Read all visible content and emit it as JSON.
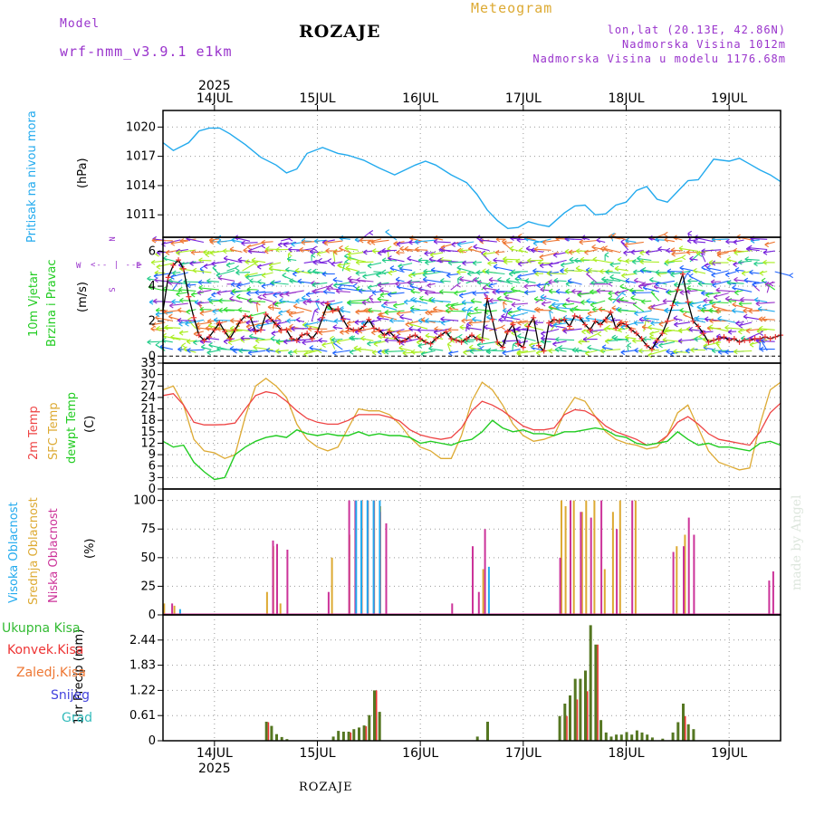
{
  "header": {
    "model_label": "Model",
    "model_name": "wrf-nmm_v3.9.1 e1km",
    "title": "ROZAJE",
    "meteogram": "Meteogram",
    "lonlat": "lon,lat (20.13E, 42.86N)",
    "altitude": "Nadmorska Visina 1012m",
    "model_altitude": "Nadmorska Visina u modelu 1176.68m",
    "footer": "ROZAJE",
    "watermark": "made by Angel",
    "year": "2025"
  },
  "colors": {
    "pressure": "#22aaee",
    "wind": "#22cc22",
    "t2m": "#ee4444",
    "sfc": "#ddaa33",
    "dew": "#22cc22",
    "high": "#22aaee",
    "mid": "#ddaa33",
    "low": "#cc3399",
    "total_precip": "#33bb33",
    "conv_precip": "#ee3333",
    "frz_precip": "#ee7733",
    "snow": "#4444dd",
    "hail": "#33bbbb",
    "compass": "#9933cc"
  },
  "dates": [
    "14JUL",
    "15JUL",
    "16JUL",
    "17JUL",
    "18JUL",
    "19JUL"
  ],
  "panels": {
    "pressure": {
      "ylabel": "Pritisak na nivou mora",
      "unit": "(hPa)",
      "ticks": [
        1011,
        1014,
        1017,
        1020
      ],
      "ylim": [
        1008.7,
        1021.7
      ]
    },
    "wind": {
      "ylabel1": "10m Vjetar",
      "ylabel2": "Brzina i Pravac",
      "unit": "(m/s)",
      "ticks": [
        0,
        2,
        4,
        6
      ],
      "ylim": [
        -0.4,
        6.8
      ],
      "compass": {
        "n": "N",
        "s": "S",
        "w": "W",
        "e": "E"
      }
    },
    "temperature": {
      "ylabel1": "2m Temp",
      "ylabel2": "SFC Temp",
      "ylabel3": "dewpt Temp",
      "unit": "(C)",
      "ticks": [
        0,
        3,
        6,
        9,
        12,
        15,
        18,
        21,
        24,
        27,
        30,
        33
      ],
      "ylim": [
        0,
        33
      ]
    },
    "clouds": {
      "ylabel1": "Visoka Oblacnost",
      "ylabel2": "Srednja Oblacnost",
      "ylabel3": "Niska Oblacnost",
      "unit": "(%)",
      "ticks": [
        0,
        25,
        50,
        75,
        100
      ],
      "ylim": [
        0,
        110
      ]
    },
    "precip": {
      "legend": [
        "Ukupna Kisa",
        "Konvek.Kisa",
        "Zaledj.Kisa",
        "Snijeg",
        "Grad"
      ],
      "ylabel": "1hr Precip (mm)",
      "ticks": [
        0,
        0.61,
        1.22,
        1.83,
        2.44
      ],
      "ylim": [
        0,
        3.05
      ]
    }
  },
  "chart_data": {
    "type": "line",
    "title": "ROZAJE",
    "x_dates": [
      "14JUL",
      "15JUL",
      "16JUL",
      "17JUL",
      "18JUL",
      "19JUL"
    ],
    "x_range_days": [
      13.5,
      19.5
    ],
    "pressure_hPa": {
      "x": [
        13.5,
        13.6,
        13.75,
        13.85,
        13.95,
        14.05,
        14.15,
        14.3,
        14.45,
        14.6,
        14.7,
        14.8,
        14.9,
        15.05,
        15.2,
        15.3,
        15.45,
        15.6,
        15.75,
        15.85,
        15.95,
        16.05,
        16.15,
        16.3,
        16.45,
        16.55,
        16.65,
        16.75,
        16.85,
        16.95,
        17.05,
        17.15,
        17.25,
        17.4,
        17.5,
        17.6,
        17.7,
        17.8,
        17.9,
        18.0,
        18.1,
        18.2,
        18.3,
        18.4,
        18.5,
        18.6,
        18.7,
        18.85,
        19.0,
        19.1,
        19.2,
        19.3,
        19.4,
        19.5
      ],
      "values": [
        1018.4,
        1017.6,
        1018.4,
        1019.6,
        1019.9,
        1019.9,
        1019.3,
        1018.2,
        1016.9,
        1016.1,
        1015.3,
        1015.7,
        1017.3,
        1017.9,
        1017.3,
        1017.1,
        1016.6,
        1015.8,
        1015.1,
        1015.6,
        1016.1,
        1016.5,
        1016.1,
        1015.1,
        1014.3,
        1013.1,
        1011.5,
        1010.4,
        1009.6,
        1009.7,
        1010.3,
        1010.0,
        1009.8,
        1011.2,
        1011.9,
        1012.0,
        1011.0,
        1011.1,
        1012.0,
        1012.3,
        1013.5,
        1013.9,
        1012.6,
        1012.3,
        1013.4,
        1014.5,
        1014.6,
        1016.7,
        1016.5,
        1016.8,
        1016.2,
        1015.6,
        1015.1,
        1014.4
      ]
    },
    "wind_speed_ms": {
      "x": [
        13.5,
        13.55,
        13.6,
        13.65,
        13.7,
        13.75,
        13.8,
        13.85,
        13.9,
        13.95,
        14.0,
        14.05,
        14.1,
        14.15,
        14.2,
        14.25,
        14.3,
        14.35,
        14.4,
        14.45,
        14.5,
        14.55,
        14.6,
        14.65,
        14.7,
        14.75,
        14.8,
        14.85,
        14.9,
        14.95,
        15.0,
        15.05,
        15.1,
        15.15,
        15.2,
        15.25,
        15.3,
        15.35,
        15.4,
        15.45,
        15.5,
        15.55,
        15.6,
        15.65,
        15.7,
        15.75,
        15.8,
        15.85,
        15.9,
        15.95,
        16.0,
        16.05,
        16.1,
        16.15,
        16.2,
        16.25,
        16.3,
        16.35,
        16.4,
        16.45,
        16.5,
        16.55,
        16.6,
        16.65,
        16.7,
        16.75,
        16.8,
        16.85,
        16.9,
        16.95,
        17.0,
        17.05,
        17.1,
        17.15,
        17.2,
        17.25,
        17.3,
        17.35,
        17.4,
        17.45,
        17.5,
        17.55,
        17.6,
        17.65,
        17.7,
        17.75,
        17.8,
        17.85,
        17.9,
        17.95,
        18.0,
        18.05,
        18.1,
        18.15,
        18.2,
        18.25,
        18.3,
        18.35,
        18.4,
        18.45,
        18.5,
        18.55,
        18.6,
        18.65,
        18.7,
        18.75,
        18.8,
        18.85,
        18.9,
        18.95,
        19.0,
        19.05,
        19.1,
        19.15,
        19.2,
        19.25,
        19.3,
        19.35,
        19.4,
        19.45,
        19.5
      ],
      "values": [
        2.6,
        4.5,
        5.2,
        5.5,
        5.0,
        3.4,
        2.2,
        1.2,
        0.9,
        1.1,
        1.5,
        1.9,
        1.4,
        1.0,
        1.5,
        2.0,
        2.3,
        2.2,
        1.4,
        1.5,
        2.4,
        2.1,
        1.8,
        1.5,
        1.5,
        1.0,
        0.9,
        1.2,
        1.3,
        1.0,
        1.4,
        2.2,
        3.0,
        2.6,
        2.7,
        2.1,
        1.6,
        1.5,
        1.5,
        1.7,
        2.1,
        1.6,
        1.5,
        1.2,
        1.4,
        1.1,
        0.8,
        0.9,
        1.1,
        1.2,
        1.0,
        0.8,
        0.7,
        1.0,
        1.2,
        1.4,
        1.0,
        0.9,
        0.8,
        1.0,
        1.2,
        1.0,
        0.9,
        3.3,
        2.1,
        0.8,
        0.5,
        1.4,
        1.8,
        0.7,
        0.5,
        1.7,
        2.2,
        0.6,
        0.3,
        1.9,
        2.1,
        2.0,
        2.1,
        1.7,
        2.3,
        2.2,
        1.8,
        1.5,
        2.0,
        1.8,
        2.1,
        2.5,
        1.6,
        1.9,
        1.8,
        1.5,
        1.3,
        1.0,
        0.6,
        0.4,
        0.9,
        1.3,
        2.0,
        2.9,
        3.8,
        4.7,
        3.1,
        2.0,
        1.7,
        1.3,
        0.8,
        0.9,
        1.0,
        1.1,
        0.9,
        1.0,
        0.8,
        0.9,
        0.9,
        1.0,
        1.0,
        1.1,
        1.0,
        1.1,
        1.2
      ]
    },
    "temp_2m_C": {
      "x": [
        13.5,
        13.6,
        13.7,
        13.8,
        13.9,
        14.0,
        14.1,
        14.2,
        14.3,
        14.4,
        14.5,
        14.6,
        14.7,
        14.8,
        14.9,
        15.0,
        15.1,
        15.2,
        15.3,
        15.4,
        15.5,
        15.6,
        15.7,
        15.8,
        15.9,
        16.0,
        16.1,
        16.2,
        16.3,
        16.4,
        16.5,
        16.6,
        16.7,
        16.8,
        16.9,
        17.0,
        17.1,
        17.2,
        17.3,
        17.4,
        17.5,
        17.6,
        17.7,
        17.8,
        17.9,
        18.0,
        18.1,
        18.2,
        18.3,
        18.4,
        18.5,
        18.6,
        18.7,
        18.8,
        18.9,
        19.0,
        19.1,
        19.2,
        19.3,
        19.4,
        19.5
      ],
      "values": [
        24.5,
        25.0,
        22.0,
        17.5,
        16.8,
        16.8,
        16.9,
        17.3,
        21.0,
        24.5,
        25.5,
        25.0,
        23.0,
        20.5,
        18.5,
        17.5,
        17.0,
        17.0,
        18.0,
        19.5,
        19.5,
        19.5,
        18.8,
        17.8,
        15.5,
        14.2,
        13.5,
        13.0,
        13.5,
        16.0,
        20.5,
        23.0,
        22.0,
        20.5,
        18.5,
        16.5,
        15.5,
        15.5,
        16.0,
        19.5,
        20.8,
        20.5,
        19.0,
        16.5,
        15.0,
        14.0,
        13.0,
        11.5,
        12.0,
        14.0,
        17.5,
        19.0,
        17.0,
        14.5,
        13.0,
        12.5,
        12.0,
        11.5,
        15.0,
        20.0,
        22.5
      ]
    },
    "temp_sfc_C": {
      "x": [
        13.5,
        13.6,
        13.7,
        13.8,
        13.9,
        14.0,
        14.1,
        14.2,
        14.3,
        14.4,
        14.5,
        14.6,
        14.7,
        14.8,
        14.9,
        15.0,
        15.1,
        15.2,
        15.3,
        15.4,
        15.5,
        15.6,
        15.7,
        15.8,
        15.9,
        16.0,
        16.1,
        16.2,
        16.3,
        16.4,
        16.5,
        16.6,
        16.7,
        16.8,
        16.9,
        17.0,
        17.1,
        17.2,
        17.3,
        17.4,
        17.5,
        17.6,
        17.7,
        17.8,
        17.9,
        18.0,
        18.1,
        18.2,
        18.3,
        18.4,
        18.5,
        18.6,
        18.7,
        18.8,
        18.9,
        19.0,
        19.1,
        19.2,
        19.3,
        19.4,
        19.5
      ],
      "values": [
        26.0,
        27.0,
        22.0,
        13.0,
        10.0,
        9.5,
        8.0,
        9.0,
        19.0,
        27.0,
        29.0,
        27.0,
        24.0,
        17.0,
        13.0,
        11.0,
        10.0,
        11.0,
        16.0,
        21.0,
        20.5,
        20.5,
        19.5,
        17.0,
        13.5,
        11.0,
        10.0,
        8.0,
        8.0,
        14.0,
        23.0,
        28.0,
        26.0,
        22.0,
        17.0,
        14.0,
        12.5,
        13.0,
        14.0,
        20.0,
        24.0,
        23.0,
        19.0,
        15.0,
        13.0,
        12.0,
        11.5,
        10.5,
        11.0,
        14.0,
        20.0,
        22.0,
        16.0,
        10.0,
        7.0,
        6.0,
        5.0,
        5.5,
        17.0,
        26.0,
        28.0
      ]
    },
    "dewpoint_C": {
      "x": [
        13.5,
        13.6,
        13.7,
        13.8,
        13.9,
        14.0,
        14.1,
        14.2,
        14.3,
        14.4,
        14.5,
        14.6,
        14.7,
        14.8,
        14.9,
        15.0,
        15.1,
        15.2,
        15.3,
        15.4,
        15.5,
        15.6,
        15.7,
        15.8,
        15.9,
        16.0,
        16.1,
        16.2,
        16.3,
        16.4,
        16.5,
        16.6,
        16.7,
        16.8,
        16.9,
        17.0,
        17.1,
        17.2,
        17.3,
        17.4,
        17.5,
        17.6,
        17.7,
        17.8,
        17.9,
        18.0,
        18.1,
        18.2,
        18.3,
        18.4,
        18.5,
        18.6,
        18.7,
        18.8,
        18.9,
        19.0,
        19.1,
        19.2,
        19.3,
        19.4,
        19.5
      ],
      "values": [
        12.5,
        11.0,
        11.5,
        7.0,
        4.5,
        2.5,
        3.0,
        9.0,
        11.0,
        12.5,
        13.5,
        14.0,
        13.5,
        15.5,
        14.5,
        14.0,
        14.5,
        14.0,
        14.0,
        15.0,
        14.0,
        14.5,
        14.0,
        14.0,
        13.5,
        12.0,
        12.5,
        12.0,
        11.5,
        12.5,
        13.0,
        15.0,
        18.0,
        16.0,
        15.0,
        15.5,
        14.5,
        14.5,
        14.0,
        15.0,
        15.0,
        15.5,
        16.0,
        15.5,
        14.0,
        13.5,
        12.0,
        11.5,
        12.0,
        12.5,
        15.0,
        13.0,
        11.5,
        12.0,
        11.0,
        11.0,
        10.5,
        10.0,
        12.0,
        12.5,
        11.5
      ]
    },
    "cloud_low_pct": {
      "x": [
        13.58,
        14.56,
        14.6,
        14.7,
        15.1,
        15.3,
        15.36,
        15.42,
        15.48,
        15.54,
        15.6,
        15.66,
        16.3,
        16.5,
        16.56,
        16.62,
        17.35,
        17.45,
        17.55,
        17.65,
        17.75,
        17.9,
        18.05,
        18.45,
        18.55,
        18.6,
        18.65,
        19.38,
        19.42
      ],
      "values": [
        10,
        65,
        62,
        57,
        20,
        100,
        100,
        100,
        100,
        100,
        90,
        80,
        10,
        60,
        20,
        75,
        50,
        100,
        90,
        85,
        100,
        75,
        100,
        55,
        60,
        85,
        70,
        30,
        38
      ]
    },
    "cloud_mid_pct": {
      "x": [
        13.52,
        13.62,
        14.52,
        14.58,
        14.65,
        15.15,
        15.32,
        15.38,
        15.44,
        15.5,
        15.56,
        15.62,
        16.62,
        17.38,
        17.42,
        17.5,
        17.58,
        17.62,
        17.7,
        17.8,
        17.88,
        17.95,
        18.1,
        18.5,
        18.58
      ],
      "values": [
        10,
        8,
        20,
        60,
        10,
        50,
        70,
        100,
        100,
        100,
        100,
        95,
        40,
        100,
        95,
        100,
        90,
        100,
        100,
        40,
        90,
        100,
        100,
        60,
        70
      ]
    },
    "cloud_high_pct": {
      "x": [
        13.64,
        15.35,
        15.4,
        15.46,
        15.52,
        15.58,
        16.64
      ],
      "values": [
        5,
        100,
        100,
        100,
        100,
        100,
        42
      ]
    },
    "precip_total_mm": {
      "x": [
        14.5,
        14.55,
        14.6,
        14.65,
        14.7,
        15.15,
        15.2,
        15.25,
        15.3,
        15.35,
        15.4,
        15.45,
        15.5,
        15.55,
        15.6,
        16.55,
        16.65,
        17.35,
        17.4,
        17.45,
        17.5,
        17.55,
        17.6,
        17.65,
        17.7,
        17.75,
        17.8,
        17.85,
        17.9,
        17.95,
        18.0,
        18.05,
        18.1,
        18.15,
        18.2,
        18.25,
        18.35,
        18.45,
        18.5,
        18.55,
        18.6,
        18.65
      ],
      "values": [
        0.46,
        0.36,
        0.16,
        0.09,
        0.04,
        0.1,
        0.24,
        0.22,
        0.22,
        0.28,
        0.32,
        0.37,
        0.62,
        1.22,
        0.7,
        0.1,
        0.46,
        0.6,
        0.9,
        1.1,
        1.5,
        1.5,
        1.7,
        2.8,
        2.33,
        0.5,
        0.2,
        0.1,
        0.15,
        0.15,
        0.21,
        0.15,
        0.25,
        0.2,
        0.15,
        0.08,
        0.05,
        0.2,
        0.45,
        0.9,
        0.4,
        0.28
      ]
    },
    "precip_conv_mm": {
      "x": [
        14.5,
        15.3,
        15.45,
        15.55,
        17.4,
        17.5,
        17.6,
        17.7,
        18.55
      ],
      "values": [
        0.45,
        0.2,
        0.35,
        1.22,
        0.6,
        1.0,
        1.2,
        2.33,
        0.6
      ]
    },
    "precip_snow_mm": {
      "x": [],
      "values": []
    },
    "precip_hail_mm": {
      "x": [],
      "values": []
    }
  }
}
